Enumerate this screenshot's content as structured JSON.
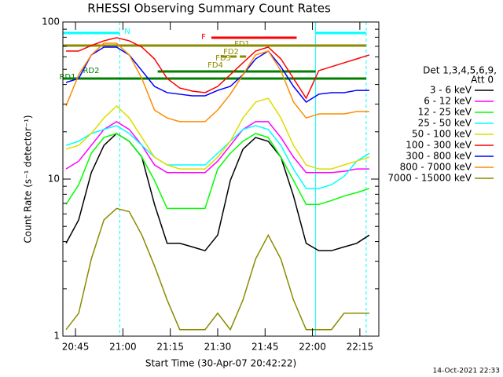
{
  "chart_data": {
    "type": "line",
    "title": "RHESSI Observing Summary Count Rates",
    "xlabel": "Start Time (30-Apr-07 20:42:22)",
    "ylabel": "Count Rate (s⁻¹ detector⁻¹)",
    "legend_title": [
      "Det 1,3,4,5,6,9,",
      "Att 0"
    ],
    "timestamp": "14-Oct-2021 22:33",
    "log_y": true,
    "xlim": [
      "20:41",
      "22:21"
    ],
    "xticks": [
      "20:45",
      "21:00",
      "21:15",
      "21:30",
      "21:45",
      "22:00",
      "22:15"
    ],
    "ylim": [
      1,
      100
    ],
    "yticks": [
      1,
      10,
      100
    ],
    "x": [
      "20:42",
      "20:46",
      "20:50",
      "20:54",
      "20:58",
      "21:02",
      "21:06",
      "21:10",
      "21:14",
      "21:18",
      "21:22",
      "21:26",
      "21:30",
      "21:34",
      "21:38",
      "21:42",
      "21:46",
      "21:50",
      "21:54",
      "21:58",
      "22:02",
      "22:06",
      "22:10",
      "22:14",
      "22:18"
    ],
    "series": [
      {
        "name": "3 - 6 keV",
        "color": "#000000",
        "values": [
          3.9,
          5.5,
          11.0,
          16.4,
          19.5,
          17.4,
          13.8,
          6.9,
          3.9,
          3.9,
          3.7,
          3.5,
          4.4,
          9.8,
          15.5,
          18.4,
          17.4,
          13.8,
          7.8,
          3.9,
          3.5,
          3.5,
          3.7,
          3.9,
          4.4
        ]
      },
      {
        "name": "6 - 12 keV",
        "color": "#ff00ff",
        "values": [
          11.6,
          13.0,
          16.4,
          20.7,
          23.2,
          20.7,
          16.4,
          12.3,
          11.0,
          11.0,
          11.0,
          11.0,
          13.0,
          16.4,
          20.7,
          23.2,
          23.2,
          18.4,
          13.8,
          11.0,
          11.0,
          11.0,
          11.2,
          11.6,
          11.6
        ]
      },
      {
        "name": "12 - 25 keV",
        "color": "#00ff00",
        "values": [
          6.9,
          9.2,
          14.6,
          18.4,
          19.5,
          17.4,
          13.8,
          9.8,
          6.5,
          6.5,
          6.5,
          6.5,
          11.6,
          14.6,
          17.4,
          19.5,
          18.4,
          13.8,
          9.8,
          6.9,
          6.9,
          7.3,
          7.8,
          8.2,
          8.7
        ]
      },
      {
        "name": "25 - 50 keV",
        "color": "#00ffff",
        "values": [
          16.4,
          17.4,
          19.5,
          20.7,
          21.9,
          19.5,
          16.4,
          13.8,
          12.3,
          12.3,
          12.3,
          12.3,
          14.6,
          17.4,
          20.7,
          21.9,
          20.7,
          16.4,
          11.6,
          8.7,
          8.7,
          9.2,
          10.4,
          13.0,
          14.6
        ]
      },
      {
        "name": "50 - 100 keV",
        "color": "#dddd00",
        "values": [
          15.5,
          16.4,
          19.5,
          24.5,
          29.2,
          24.5,
          18.4,
          13.8,
          12.3,
          11.6,
          11.6,
          11.6,
          13.8,
          17.4,
          24.5,
          30.9,
          32.7,
          24.5,
          16.4,
          12.3,
          11.6,
          11.6,
          12.3,
          13.0,
          13.8
        ]
      },
      {
        "name": "100 - 300 keV",
        "color": "#ff0000",
        "values": [
          65.3,
          65.3,
          70.8,
          75.9,
          79.4,
          75.9,
          69.2,
          58.2,
          43.7,
          38.0,
          36.3,
          35.5,
          38.9,
          46.2,
          55.0,
          65.3,
          69.2,
          58.2,
          43.7,
          32.7,
          49.0,
          51.9,
          55.0,
          58.2,
          61.7
        ]
      },
      {
        "name": "300 - 800 keV",
        "color": "#0000ff",
        "values": [
          41.2,
          43.7,
          61.7,
          69.2,
          69.2,
          61.7,
          49.0,
          38.9,
          35.5,
          34.7,
          33.9,
          33.9,
          36.7,
          38.9,
          46.2,
          58.2,
          65.3,
          51.9,
          38.9,
          30.9,
          34.7,
          35.5,
          35.5,
          36.7,
          36.7
        ]
      },
      {
        "name": "800 - 7000 keV",
        "color": "#ff8c00",
        "values": [
          29.2,
          46.2,
          61.7,
          73.3,
          73.3,
          61.7,
          43.7,
          27.5,
          24.5,
          23.2,
          23.2,
          23.2,
          27.5,
          34.7,
          46.2,
          61.7,
          65.3,
          49.0,
          30.9,
          24.5,
          26.0,
          26.0,
          26.0,
          26.9,
          26.9
        ]
      },
      {
        "name": "7000 - 15000 keV",
        "color": "#8b8b00",
        "values": [
          1.1,
          1.4,
          3.1,
          5.5,
          6.5,
          6.2,
          4.4,
          2.8,
          1.7,
          1.1,
          1.1,
          1.1,
          1.4,
          1.1,
          1.7,
          3.1,
          4.4,
          3.1,
          1.7,
          1.1,
          1.1,
          1.1,
          1.4,
          1.4,
          1.4
        ]
      }
    ],
    "annotations": [
      {
        "label": "N",
        "color": "#00ffff",
        "intervals": [
          [
            "20:41",
            "20:59"
          ],
          [
            "22:01",
            "22:17"
          ]
        ]
      },
      {
        "label": "F",
        "color": "#ff0000",
        "intervals": [
          [
            "21:28",
            "21:55"
          ]
        ]
      },
      {
        "label": "FD1",
        "color": "#8b8b00",
        "intervals": [
          [
            "20:41",
            "22:17"
          ]
        ]
      },
      {
        "label": "FD2",
        "color": "#8b8b00",
        "intervals": [
          [
            "21:37",
            "21:39"
          ]
        ]
      },
      {
        "label": "FD3",
        "color": "#8b8b00",
        "intervals": [
          [
            "21:34",
            "21:36"
          ]
        ]
      },
      {
        "label": "FD4",
        "color": "#8b8b00",
        "intervals": [
          [
            "21:31",
            "21:33"
          ]
        ]
      },
      {
        "label": "RD1",
        "color": "#008000",
        "intervals": [
          [
            "20:41",
            "22:17"
          ]
        ]
      },
      {
        "label": "RD2",
        "color": "#008000",
        "intervals": [
          [
            "21:11",
            "22:01"
          ]
        ]
      }
    ]
  }
}
